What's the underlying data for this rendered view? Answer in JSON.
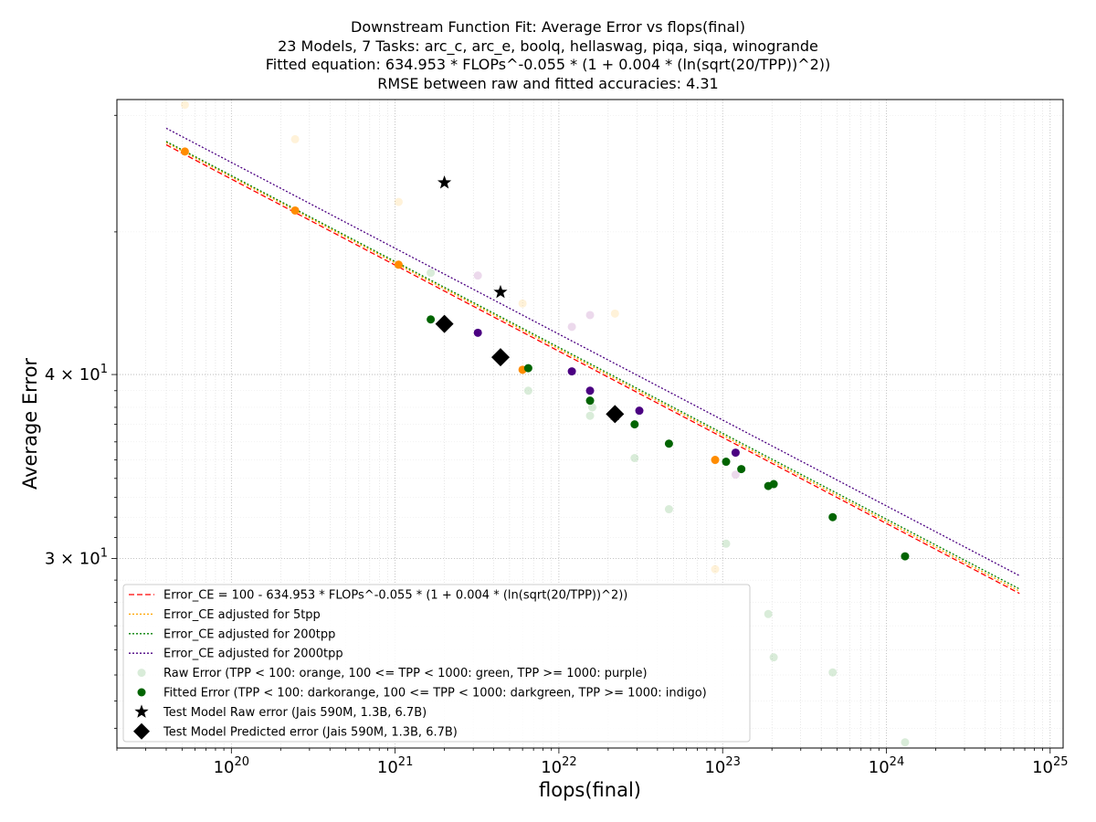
{
  "chart_data": {
    "type": "scatter",
    "title_lines": [
      "Downstream Function Fit: Average Error vs flops(final)",
      "23 Models, 7 Tasks: arc_c, arc_e, boolq, hellaswag, piqa, siqa, winogrande",
      "Fitted equation: 634.953 * FLOPs^-0.055 * (1 + 0.004 * (ln(sqrt(20/TPP))^2))",
      "RMSE between raw and fitted accuracies: 4.31"
    ],
    "xlabel": "flops(final)",
    "ylabel": "Average Error",
    "x_scale": "log",
    "y_scale": "log",
    "xlim": [
      2e+19,
      1.2e+25
    ],
    "ylim": [
      22.3,
      61.5
    ],
    "x_ticks": [
      {
        "value": 1e+20,
        "label": "10",
        "exp": "20"
      },
      {
        "value": 1e+21,
        "label": "10",
        "exp": "21"
      },
      {
        "value": 1e+22,
        "label": "10",
        "exp": "22"
      },
      {
        "value": 1e+23,
        "label": "10",
        "exp": "23"
      },
      {
        "value": 1e+24,
        "label": "10",
        "exp": "24"
      },
      {
        "value": 1e+25,
        "label": "10",
        "exp": "25"
      }
    ],
    "y_ticks": [
      {
        "value": 30,
        "label": "3 × 10",
        "exp": "1"
      },
      {
        "value": 40,
        "label": "4 × 10",
        "exp": "1"
      }
    ],
    "y_minor_ticks": [
      50,
      60
    ],
    "grid": true,
    "legend_position": "lower-left",
    "lines": [
      {
        "name": "Error_CE = 100 - 634.953 * FLOPs^-0.055 * (1 + 0.004 * (ln(sqrt(20/TPP))^2))",
        "color": "#ff0000",
        "dash": "6,3",
        "x": [
          4e+19,
          6.5e+24
        ],
        "y": [
          57.3,
          28.4
        ]
      },
      {
        "name": "Error_CE adjusted for 5tpp",
        "color": "#ffa500",
        "dash": "2,2",
        "x": [
          4e+19,
          6.5e+24
        ],
        "y": [
          57.5,
          28.5
        ]
      },
      {
        "name": "Error_CE adjusted for 200tpp",
        "color": "#008000",
        "dash": "2,2",
        "x": [
          4e+19,
          6.5e+24
        ],
        "y": [
          57.6,
          28.6
        ]
      },
      {
        "name": "Error_CE adjusted for 2000tpp",
        "color": "#4b0082",
        "dash": "2,2",
        "x": [
          4e+19,
          6.5e+24
        ],
        "y": [
          58.8,
          29.2
        ]
      }
    ],
    "raw_points": [
      {
        "x": 5.2e+19,
        "y": 61.0,
        "color": "#ffa500"
      },
      {
        "x": 2.45e+20,
        "y": 57.8,
        "color": "#ffa500"
      },
      {
        "x": 1.05e+21,
        "y": 52.4,
        "color": "#ffa500"
      },
      {
        "x": 6e+21,
        "y": 44.7,
        "color": "#ffa500"
      },
      {
        "x": 2.2e+22,
        "y": 44.0,
        "color": "#ffa500"
      },
      {
        "x": 9e+22,
        "y": 29.5,
        "color": "#ffa500"
      },
      {
        "x": 1.65e+21,
        "y": 46.9,
        "color": "#008000"
      },
      {
        "x": 6.5e+21,
        "y": 39.0,
        "color": "#008000"
      },
      {
        "x": 1.55e+22,
        "y": 37.5,
        "color": "#008000"
      },
      {
        "x": 1.6e+22,
        "y": 38.0,
        "color": "#008000"
      },
      {
        "x": 2.9e+22,
        "y": 35.1,
        "color": "#008000"
      },
      {
        "x": 4.7e+22,
        "y": 32.4,
        "color": "#008000"
      },
      {
        "x": 1.05e+23,
        "y": 30.7,
        "color": "#008000"
      },
      {
        "x": 1.9e+23,
        "y": 27.5,
        "color": "#008000"
      },
      {
        "x": 2.05e+23,
        "y": 25.7,
        "color": "#008000"
      },
      {
        "x": 4.7e+23,
        "y": 25.1,
        "color": "#008000"
      },
      {
        "x": 1.3e+24,
        "y": 22.5,
        "color": "#008000"
      },
      {
        "x": 3.2e+21,
        "y": 46.7,
        "color": "#800080"
      },
      {
        "x": 1.2e+22,
        "y": 43.1,
        "color": "#800080"
      },
      {
        "x": 1.55e+22,
        "y": 43.9,
        "color": "#800080"
      },
      {
        "x": 1.2e+23,
        "y": 34.2,
        "color": "#800080"
      }
    ],
    "fitted_points": [
      {
        "x": 5.2e+19,
        "y": 56.7,
        "color": "#ff8c00"
      },
      {
        "x": 2.45e+20,
        "y": 51.7,
        "color": "#ff8c00"
      },
      {
        "x": 1.05e+21,
        "y": 47.5,
        "color": "#ff8c00"
      },
      {
        "x": 6e+21,
        "y": 40.3,
        "color": "#ff8c00"
      },
      {
        "x": 9e+22,
        "y": 35.0,
        "color": "#ff8c00"
      },
      {
        "x": 1.65e+21,
        "y": 43.6,
        "color": "#006400"
      },
      {
        "x": 6.5e+21,
        "y": 40.4,
        "color": "#006400"
      },
      {
        "x": 1.55e+22,
        "y": 38.4,
        "color": "#006400"
      },
      {
        "x": 2.9e+22,
        "y": 37.0,
        "color": "#006400"
      },
      {
        "x": 4.7e+22,
        "y": 35.9,
        "color": "#006400"
      },
      {
        "x": 1.05e+23,
        "y": 34.9,
        "color": "#006400"
      },
      {
        "x": 1.3e+23,
        "y": 34.5,
        "color": "#006400"
      },
      {
        "x": 1.9e+23,
        "y": 33.6,
        "color": "#006400"
      },
      {
        "x": 2.05e+23,
        "y": 33.7,
        "color": "#006400"
      },
      {
        "x": 4.7e+23,
        "y": 32.0,
        "color": "#006400"
      },
      {
        "x": 1.3e+24,
        "y": 30.1,
        "color": "#006400"
      },
      {
        "x": 3.2e+21,
        "y": 42.7,
        "color": "#4b0082"
      },
      {
        "x": 1.2e+22,
        "y": 40.2,
        "color": "#4b0082"
      },
      {
        "x": 1.55e+22,
        "y": 39.0,
        "color": "#4b0082"
      },
      {
        "x": 3.1e+22,
        "y": 37.8,
        "color": "#4b0082"
      },
      {
        "x": 1.2e+23,
        "y": 35.4,
        "color": "#4b0082"
      }
    ],
    "test_raw": [
      {
        "x": 2e+21,
        "y": 54.0
      },
      {
        "x": 4.4e+21,
        "y": 45.5
      },
      {
        "x": 2.2e+22,
        "y": 37.6
      }
    ],
    "test_pred": [
      {
        "x": 2e+21,
        "y": 43.3
      },
      {
        "x": 4.4e+21,
        "y": 41.1
      },
      {
        "x": 2.2e+22,
        "y": 37.6
      }
    ],
    "legend": [
      {
        "label": "Error_CE = 100 - 634.953 * FLOPs^-0.055 * (1 + 0.004 * (ln(sqrt(20/TPP))^2))",
        "kind": "line",
        "color": "#ff0000",
        "dash": "6,3"
      },
      {
        "label": "Error_CE adjusted for 5tpp",
        "kind": "line",
        "color": "#ffa500",
        "dash": "2,2"
      },
      {
        "label": "Error_CE adjusted for 200tpp",
        "kind": "line",
        "color": "#008000",
        "dash": "2,2"
      },
      {
        "label": "Error_CE adjusted for 2000tpp",
        "kind": "line",
        "color": "#4b0082",
        "dash": "2,2"
      },
      {
        "label": "Raw Error (TPP < 100: orange, 100 <= TPP < 1000: green, TPP >= 1000: purple)",
        "kind": "raw",
        "color": "#008000"
      },
      {
        "label": "Fitted Error (TPP < 100: darkorange, 100 <= TPP < 1000: darkgreen, TPP >= 1000: indigo)",
        "kind": "fitted",
        "color": "#006400"
      },
      {
        "label": "Test Model Raw error (Jais 590M, 1.3B, 6.7B)",
        "kind": "star",
        "color": "#000000"
      },
      {
        "label": "Test Model Predicted error (Jais 590M, 1.3B, 6.7B)",
        "kind": "diamond",
        "color": "#000000"
      }
    ]
  }
}
